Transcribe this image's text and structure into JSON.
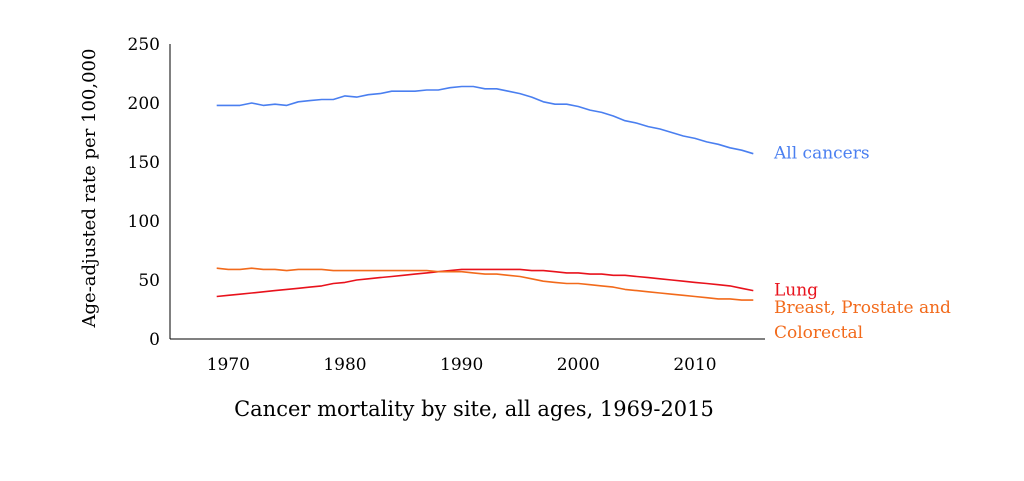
{
  "chart_data": {
    "type": "line",
    "title": "Cancer mortality by site, all ages, 1969-2015",
    "xlabel": "",
    "ylabel": "Age-adjusted rate per 100,000",
    "xlim": [
      1965,
      2016
    ],
    "ylim": [
      0,
      250
    ],
    "x_ticks": [
      1970,
      1980,
      1990,
      2000,
      2010
    ],
    "y_ticks": [
      0,
      50,
      100,
      150,
      200,
      250
    ],
    "grid": false,
    "legend": "inline labels at right end of each line",
    "x": [
      1969,
      1970,
      1971,
      1972,
      1973,
      1974,
      1975,
      1976,
      1977,
      1978,
      1979,
      1980,
      1981,
      1982,
      1983,
      1984,
      1985,
      1986,
      1987,
      1988,
      1989,
      1990,
      1991,
      1992,
      1993,
      1994,
      1995,
      1996,
      1997,
      1998,
      1999,
      2000,
      2001,
      2002,
      2003,
      2004,
      2005,
      2006,
      2007,
      2008,
      2009,
      2010,
      2011,
      2012,
      2013,
      2014,
      2015
    ],
    "series": [
      {
        "name": "All cancers",
        "label_lines": [
          "All cancers"
        ],
        "color": "#4a7ff0",
        "values": [
          198,
          198,
          198,
          200,
          198,
          199,
          198,
          201,
          202,
          203,
          203,
          206,
          205,
          207,
          208,
          210,
          210,
          210,
          211,
          211,
          213,
          214,
          214,
          212,
          212,
          210,
          208,
          205,
          201,
          199,
          199,
          197,
          194,
          192,
          189,
          185,
          183,
          180,
          178,
          175,
          172,
          170,
          167,
          165,
          162,
          160,
          157
        ]
      },
      {
        "name": "Lung",
        "label_lines": [
          "Lung"
        ],
        "color": "#e8121c",
        "values": [
          36,
          37,
          38,
          39,
          40,
          41,
          42,
          43,
          44,
          45,
          47,
          48,
          50,
          51,
          52,
          53,
          54,
          55,
          56,
          57,
          58,
          59,
          59,
          59,
          59,
          59,
          59,
          58,
          58,
          57,
          56,
          56,
          55,
          55,
          54,
          54,
          53,
          52,
          51,
          50,
          49,
          48,
          47,
          46,
          45,
          43,
          41
        ]
      },
      {
        "name": "Breast, Prostate and Colorectal",
        "label_lines": [
          "Breast, Prostate and",
          "Colorectal"
        ],
        "color": "#f26a1b",
        "values": [
          60,
          59,
          59,
          60,
          59,
          59,
          58,
          59,
          59,
          59,
          58,
          58,
          58,
          58,
          58,
          58,
          58,
          58,
          58,
          57,
          57,
          57,
          56,
          55,
          55,
          54,
          53,
          51,
          49,
          48,
          47,
          47,
          46,
          45,
          44,
          42,
          41,
          40,
          39,
          38,
          37,
          36,
          35,
          34,
          34,
          33,
          33
        ]
      }
    ]
  }
}
